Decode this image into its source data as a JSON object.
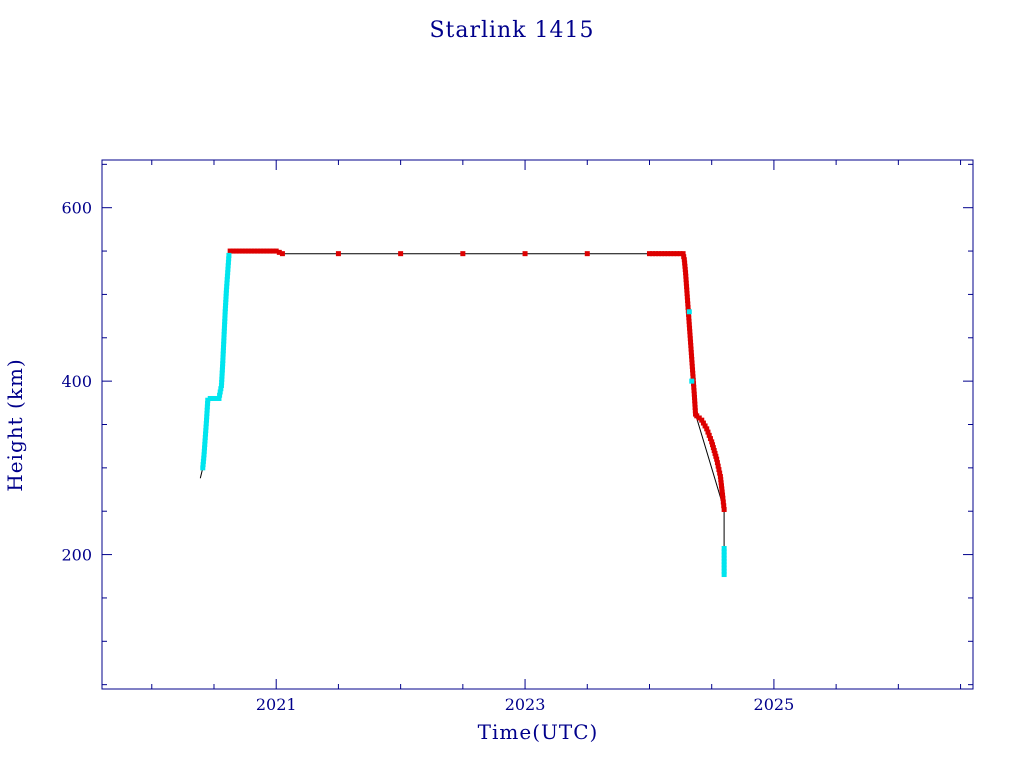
{
  "chart_data": {
    "type": "scatter",
    "title": "Starlink 1415",
    "xlabel": "Time(UTC)",
    "ylabel": "Height (km)",
    "xlim": [
      2019.6,
      2026.6
    ],
    "ylim": [
      45,
      655
    ],
    "x_ticks": [
      2021,
      2023,
      2025
    ],
    "x_tick_labels": [
      "2021",
      "2023",
      "2025"
    ],
    "y_ticks": [
      200,
      400,
      600
    ],
    "y_tick_labels": [
      "200",
      "400",
      "600"
    ],
    "grid": false,
    "colors": {
      "frame": "#00008b",
      "text": "#00008b",
      "red_series": "#dd0000",
      "cyan_series": "#00e5ee",
      "line": "#000000"
    },
    "series": [
      {
        "color": "cyan",
        "points": [
          [
            2020.41,
            300
          ],
          [
            2020.42,
            315
          ],
          [
            2020.43,
            335
          ],
          [
            2020.44,
            355
          ],
          [
            2020.45,
            378
          ],
          [
            2020.47,
            380
          ],
          [
            2020.5,
            380
          ],
          [
            2020.54,
            380
          ],
          [
            2020.56,
            395
          ],
          [
            2020.57,
            420
          ],
          [
            2020.58,
            450
          ],
          [
            2020.59,
            480
          ],
          [
            2020.6,
            505
          ],
          [
            2020.61,
            525
          ],
          [
            2020.62,
            545
          ],
          [
            2024.32,
            480
          ],
          [
            2024.34,
            400
          ],
          [
            2024.6,
            207
          ],
          [
            2024.6,
            177
          ]
        ]
      },
      {
        "color": "red",
        "points": [
          [
            2020.63,
            550
          ],
          [
            2020.8,
            550
          ],
          [
            2021.0,
            550
          ],
          [
            2021.05,
            547
          ],
          [
            2021.5,
            547
          ],
          [
            2022.0,
            547
          ],
          [
            2022.5,
            547
          ],
          [
            2023.0,
            547
          ],
          [
            2023.5,
            547
          ],
          [
            2024.0,
            547
          ],
          [
            2024.27,
            547
          ],
          [
            2024.28,
            540
          ],
          [
            2024.29,
            525
          ],
          [
            2024.3,
            505
          ],
          [
            2024.31,
            485
          ],
          [
            2024.32,
            465
          ],
          [
            2024.33,
            445
          ],
          [
            2024.34,
            425
          ],
          [
            2024.35,
            405
          ],
          [
            2024.36,
            385
          ],
          [
            2024.37,
            362
          ],
          [
            2024.38,
            360
          ],
          [
            2024.42,
            355
          ],
          [
            2024.46,
            345
          ],
          [
            2024.5,
            330
          ],
          [
            2024.54,
            310
          ],
          [
            2024.57,
            290
          ],
          [
            2024.59,
            265
          ],
          [
            2024.6,
            252
          ]
        ]
      }
    ],
    "line": [
      [
        2020.39,
        288
      ],
      [
        2020.41,
        300
      ],
      [
        2020.45,
        378
      ],
      [
        2020.54,
        380
      ],
      [
        2020.62,
        545
      ],
      [
        2020.63,
        550
      ],
      [
        2021.0,
        550
      ],
      [
        2021.05,
        547
      ],
      [
        2024.27,
        547
      ],
      [
        2024.37,
        362
      ],
      [
        2024.6,
        252
      ],
      [
        2024.6,
        177
      ]
    ]
  }
}
